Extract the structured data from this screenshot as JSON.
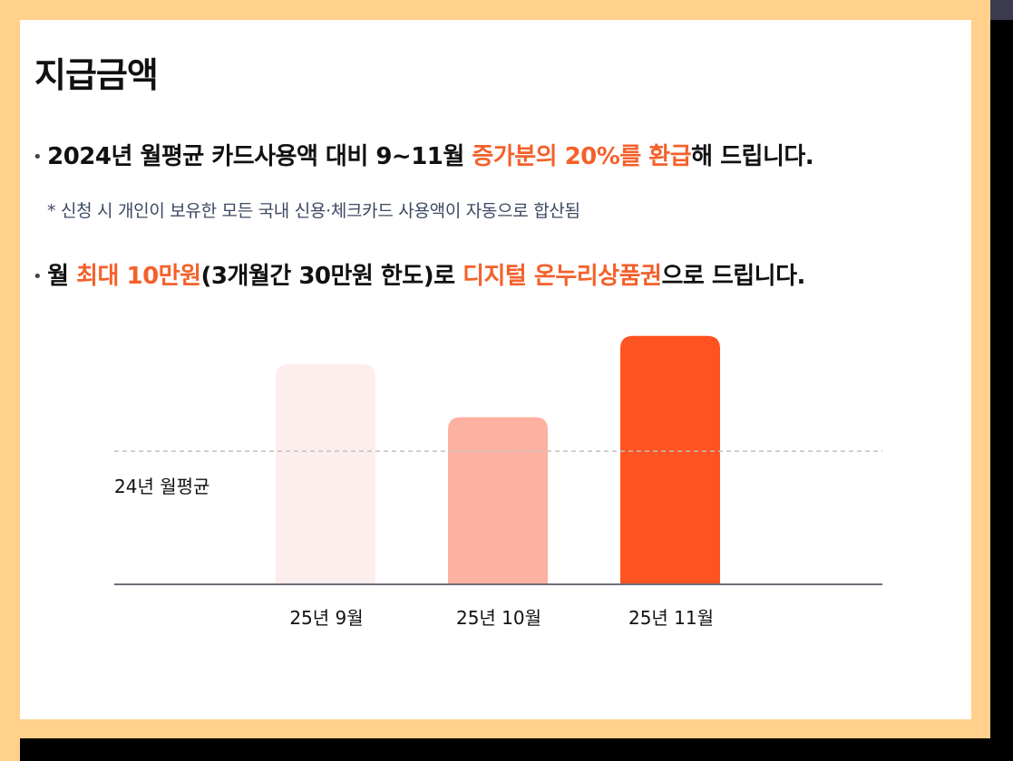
{
  "title": "지급금액",
  "bullet1": {
    "part1": "2024년 월평균 카드사용액 대비 9~11월 ",
    "highlight": "증가분의 20%를 환급",
    "part2": "해 드립니다."
  },
  "note": "* 신청 시 개인이 보유한 모든 국내 신용·체크카드 사용액이 자동으로 합산됨",
  "bullet2": {
    "part1": "월 ",
    "highlight1": "최대 10만원",
    "part2": "(3개월간 30만원 한도)로 ",
    "highlight2": "디지털 온누리상품권",
    "part3": "으로 드립니다."
  },
  "chart_data": {
    "type": "bar",
    "categories": [
      "25년 9월",
      "25년 10월",
      "25년 11월"
    ],
    "values": [
      1.16,
      0.88,
      1.31
    ],
    "bar_colors": [
      "#fdeeee",
      "#fdb1a0",
      "#ff5322"
    ],
    "reference_line": {
      "label": "24년 월평균",
      "value": 0.7
    },
    "ylim": [
      0,
      1.4
    ],
    "title": "",
    "xlabel": "",
    "ylabel": ""
  }
}
